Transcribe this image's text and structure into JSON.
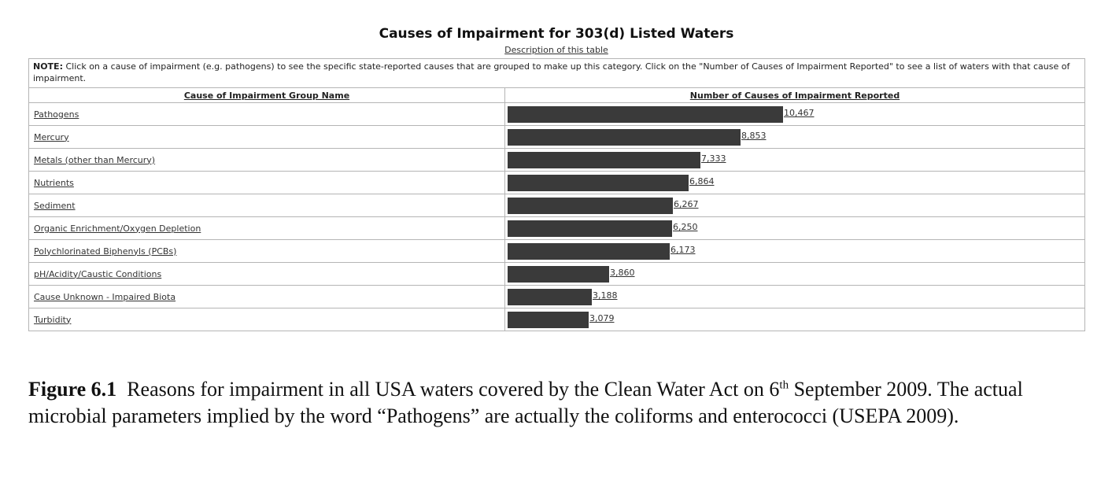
{
  "table": {
    "title": "Causes of Impairment for 303(d) Listed Waters",
    "description_link": "Description of this table",
    "note_label": "NOTE:",
    "note_text": "Click on a cause of impairment (e.g. pathogens) to see the specific state-reported causes that are grouped to make up this category. Click on the \"Number of Causes of Impairment Reported\" to see a list of waters with that cause of impairment.",
    "col_name_header": "Cause of Impairment Group Name",
    "col_count_header": "Number of Causes of Impairment Reported"
  },
  "chart_data": {
    "type": "bar",
    "orientation": "horizontal",
    "title": "Causes of Impairment for 303(d) Listed Waters",
    "categories": [
      "Pathogens",
      "Mercury",
      "Metals (other than Mercury)",
      "Nutrients",
      "Sediment",
      "Organic Enrichment/Oxygen Depletion",
      "Polychlorinated Biphenyls (PCBs)",
      "pH/Acidity/Caustic Conditions",
      "Cause Unknown - Impaired Biota",
      "Turbidity"
    ],
    "values": [
      10467,
      8853,
      7333,
      6864,
      6267,
      6250,
      6173,
      3860,
      3188,
      3079
    ],
    "value_labels": [
      "10,467",
      "8,853",
      "7,333",
      "6,864",
      "6,267",
      "6,250",
      "6,173",
      "3,860",
      "3,188",
      "3,079"
    ],
    "bar_color": "#3a3a3a"
  },
  "caption": {
    "label": "Figure 6.1",
    "text_part1": "Reasons for impairment in all USA waters covered by the Clean Water Act on 6",
    "superscript": "th",
    "text_part2": " September 2009. The actual microbial parameters implied by the word “Pathogens” are actually the coliforms and enterococci (USEPA 2009)."
  }
}
